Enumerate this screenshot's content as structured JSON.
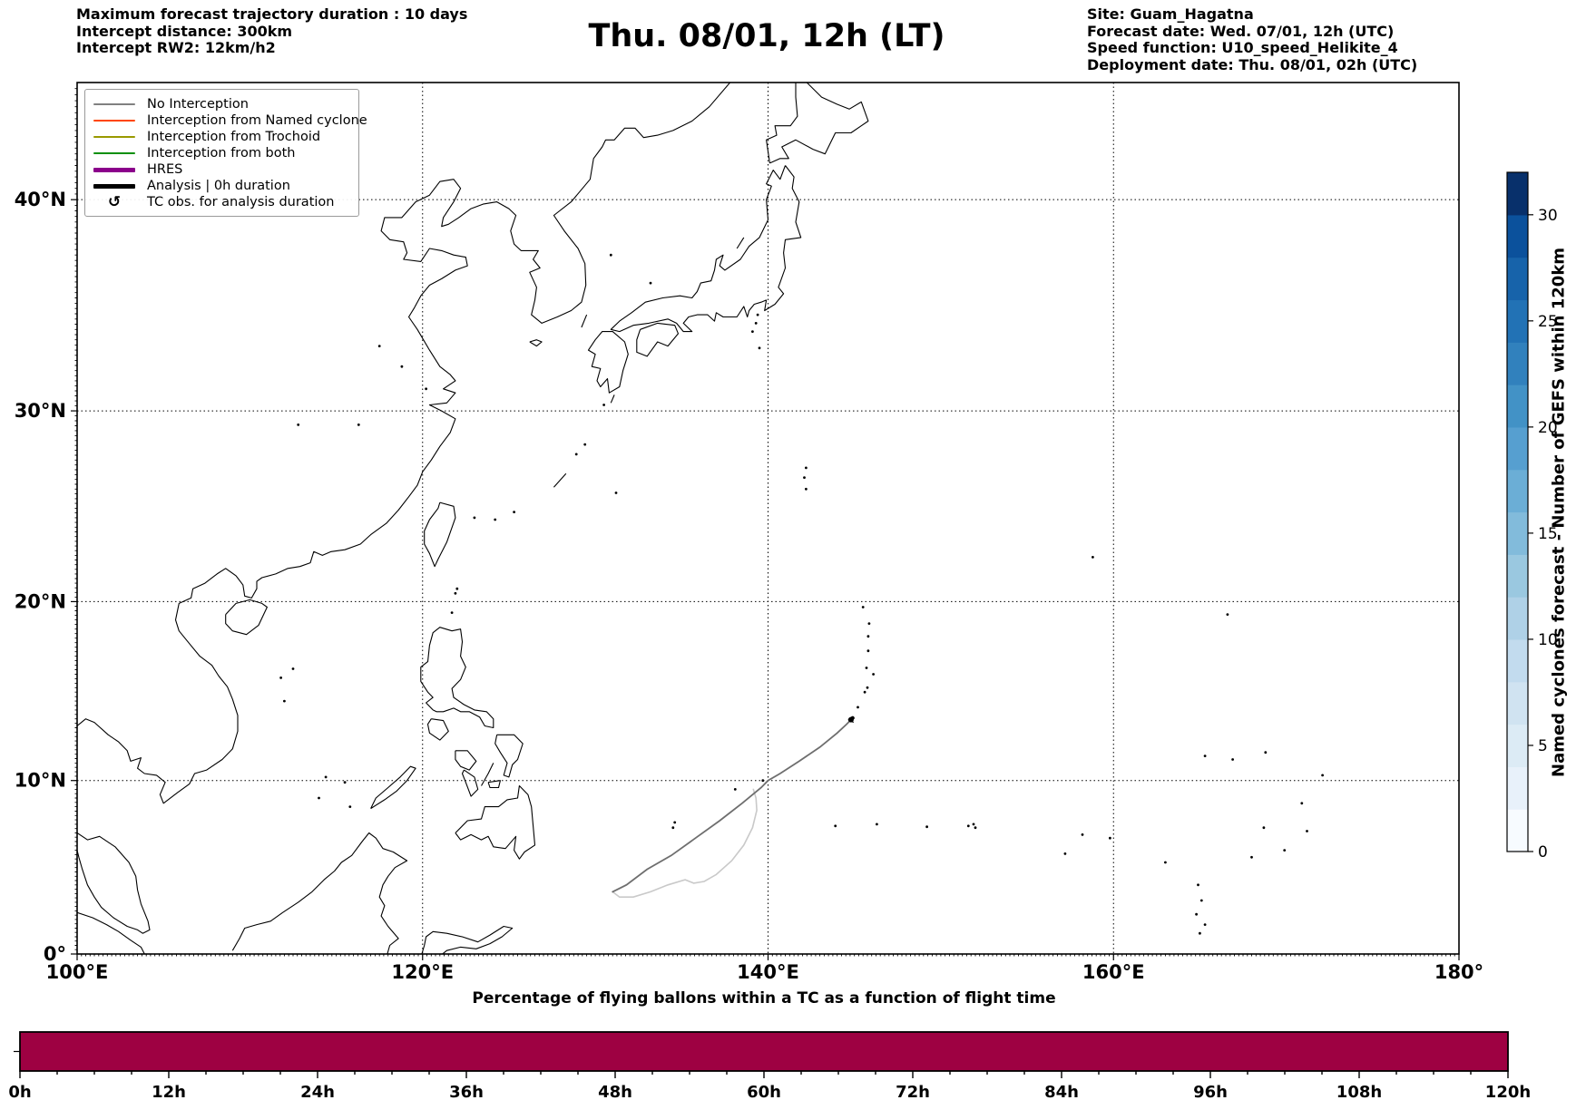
{
  "figure": {
    "header_left": [
      "Maximum forecast trajectory duration : 10 days",
      "Intercept distance: 300km",
      "Intercept RW2: 12km/h2"
    ],
    "title": "Thu. 08/01, 12h (LT)",
    "header_right": [
      "Site: Guam_Hagatna",
      "Forecast date: Wed. 07/01, 12h (UTC)",
      "Speed function: U10_speed_Helikite_4",
      "Deployment date: Thu. 08/01, 02h (UTC)"
    ]
  },
  "legend": {
    "items": [
      {
        "label": "No Interception",
        "color": "#808080",
        "lw": 2
      },
      {
        "label": "Interception from Named cyclone",
        "color": "#ff4500",
        "lw": 2
      },
      {
        "label": "Interception from Trochoid",
        "color": "#999900",
        "lw": 2
      },
      {
        "label": "Interception from both",
        "color": "#0a8f0a",
        "lw": 2
      },
      {
        "label": "HRES",
        "color": "#8b008b",
        "lw": 5
      },
      {
        "label": "Analysis | 0h duration",
        "color": "#000000",
        "lw": 5
      },
      {
        "label": "TC obs. for analysis duration",
        "symbol": "↺"
      }
    ]
  },
  "map": {
    "extent": {
      "lon_min": 100,
      "lon_max": 180,
      "lat_min": 0,
      "lat_max": 45
    },
    "lon_ticks": [
      {
        "label": "100°E",
        "lon": 100
      },
      {
        "label": "120°E",
        "lon": 120
      },
      {
        "label": "140°E",
        "lon": 140
      },
      {
        "label": "160°E",
        "lon": 160
      },
      {
        "label": "180°",
        "lon": 180
      }
    ],
    "lat_ticks": [
      {
        "label": "0°",
        "lat": 0
      },
      {
        "label": "10°N",
        "lat": 10
      },
      {
        "label": "20°N",
        "lat": 20
      },
      {
        "label": "30°N",
        "lat": 30
      },
      {
        "label": "40°N",
        "lat": 40
      }
    ],
    "gridline_lons": [
      120,
      140,
      160
    ],
    "gridline_lats": [
      10,
      20,
      30,
      40
    ]
  },
  "colorbar": {
    "label": "Named cyclones forecast - Number of GEFS within 120km",
    "ticks": [
      0,
      5,
      10,
      15,
      20,
      25,
      30
    ],
    "vmin": 0,
    "vmax": 32,
    "colors": [
      "#f7fbff",
      "#e8f1fa",
      "#dcebf5",
      "#d0e3f1",
      "#c2dbee",
      "#afd1e7",
      "#9ac8e0",
      "#82bbdb",
      "#6baed6",
      "#569fd0",
      "#4292c6",
      "#3181bd",
      "#2272b5",
      "#1763aa",
      "#0b519c",
      "#08306b"
    ]
  },
  "chart_data": [
    {
      "type": "line",
      "name": "balloon-forecast-trajectories",
      "x_axis": "longitude (°E)",
      "y_axis": "latitude (°N)",
      "extent": [
        100,
        180,
        0,
        45
      ],
      "series": [
        {
          "name": "No Interception (forecast trajectory)",
          "color": "#6e6e6e",
          "lw": 1.8,
          "points_lon_lat": [
            [
              131.0,
              3.6
            ],
            [
              131.8,
              4.0
            ],
            [
              133.0,
              4.9
            ],
            [
              134.4,
              5.7
            ],
            [
              135.8,
              6.7
            ],
            [
              137.2,
              7.7
            ],
            [
              138.5,
              8.7
            ],
            [
              139.6,
              9.6
            ],
            [
              140.0,
              10.0
            ],
            [
              140.7,
              10.4
            ],
            [
              141.8,
              11.1
            ],
            [
              143.0,
              11.9
            ],
            [
              144.0,
              12.7
            ],
            [
              144.55,
              13.2
            ],
            [
              144.85,
              13.5
            ]
          ]
        },
        {
          "name": "No Interception (secondary trajectory)",
          "color": "#c9c9c9",
          "lw": 1.6,
          "points_lon_lat": [
            [
              131.0,
              3.6
            ],
            [
              131.4,
              3.3
            ],
            [
              132.2,
              3.3
            ],
            [
              133.2,
              3.6
            ],
            [
              134.2,
              4.0
            ],
            [
              135.2,
              4.3
            ],
            [
              135.7,
              4.1
            ],
            [
              136.3,
              4.2
            ],
            [
              137.0,
              4.6
            ],
            [
              137.9,
              5.4
            ],
            [
              138.6,
              6.3
            ],
            [
              139.1,
              7.3
            ],
            [
              139.35,
              8.3
            ],
            [
              139.3,
              9.0
            ],
            [
              139.15,
              9.5
            ]
          ]
        },
        {
          "name": "Analysis | 0h duration",
          "color": "#000000",
          "lw": 4,
          "points_lon_lat": [
            [
              144.75,
              13.45
            ],
            [
              144.9,
              13.55
            ]
          ]
        }
      ]
    },
    {
      "type": "bar",
      "name": "percentage-flying-balloons",
      "title": "Percentage of flying ballons within a TC as a function of flight time",
      "x_ticks": [
        "0h",
        "12h",
        "24h",
        "36h",
        "48h",
        "60h",
        "72h",
        "84h",
        "96h",
        "108h",
        "120h"
      ],
      "x_range_hours": [
        0,
        120
      ],
      "minor_tick_step_hours": 3,
      "value_percent": 100,
      "ylim": [
        0,
        100
      ],
      "bar_color": "#9e0142"
    }
  ]
}
